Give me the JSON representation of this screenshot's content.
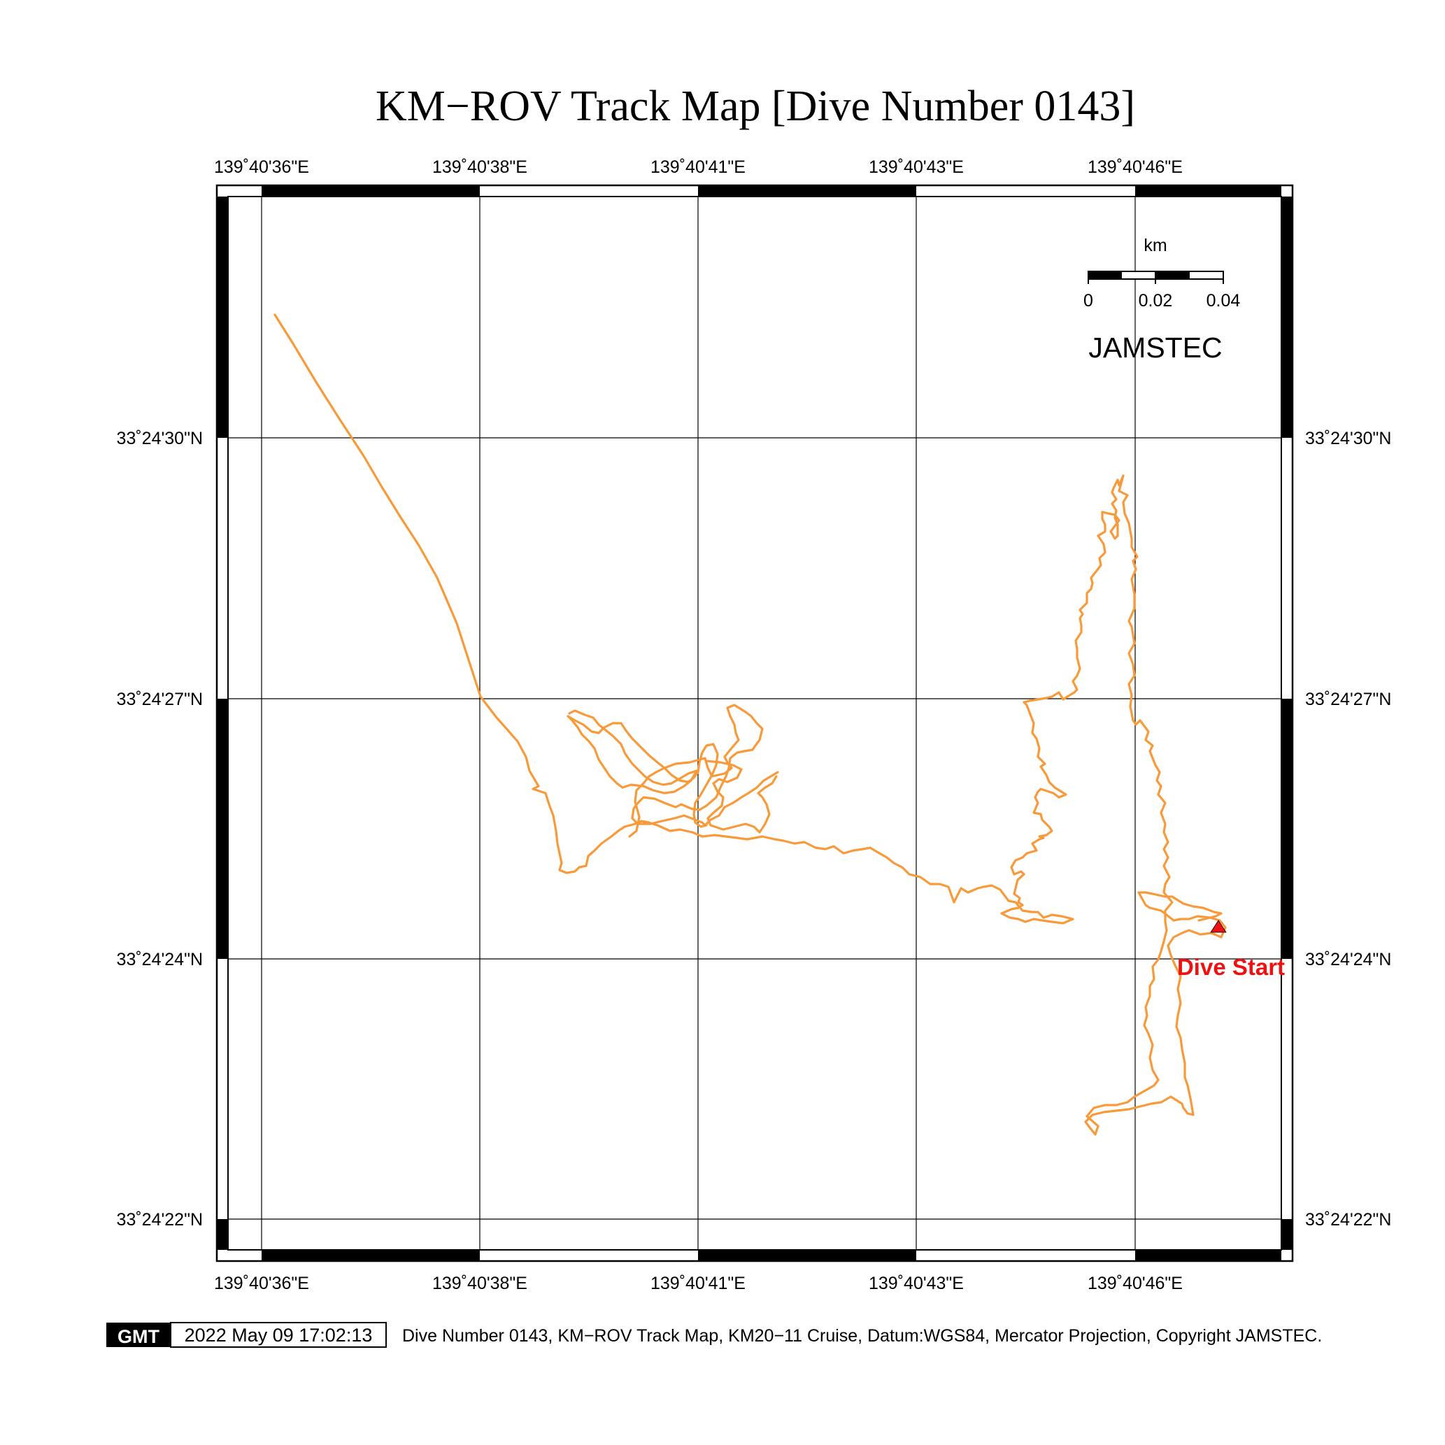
{
  "map": {
    "title": "KM−ROV Track Map [Dive Number 0143]",
    "longitude_ticks": [
      "139˚40'36\"E",
      "139˚40'38\"E",
      "139˚40'41\"E",
      "139˚40'43\"E",
      "139˚40'46\"E"
    ],
    "latitude_ticks": [
      "33˚24'30\"N",
      "33˚24'27\"N",
      "33˚24'24\"N",
      "33˚24'22\"N"
    ],
    "scale_bar": {
      "unit": "km",
      "labels": [
        "0",
        "0.02",
        "0.04"
      ]
    },
    "organization": "JAMSTEC",
    "start_marker": {
      "label": "Dive Start",
      "color": "#ee1111"
    },
    "track_color": "#f89a3a"
  },
  "footer": {
    "logo": "GMT",
    "timestamp": "2022 May 09 17:02:13",
    "caption": "Dive Number 0143, KM−ROV Track Map, KM20−11 Cruise, Datum:WGS84, Mercator Projection, Copyright JAMSTEC."
  }
}
